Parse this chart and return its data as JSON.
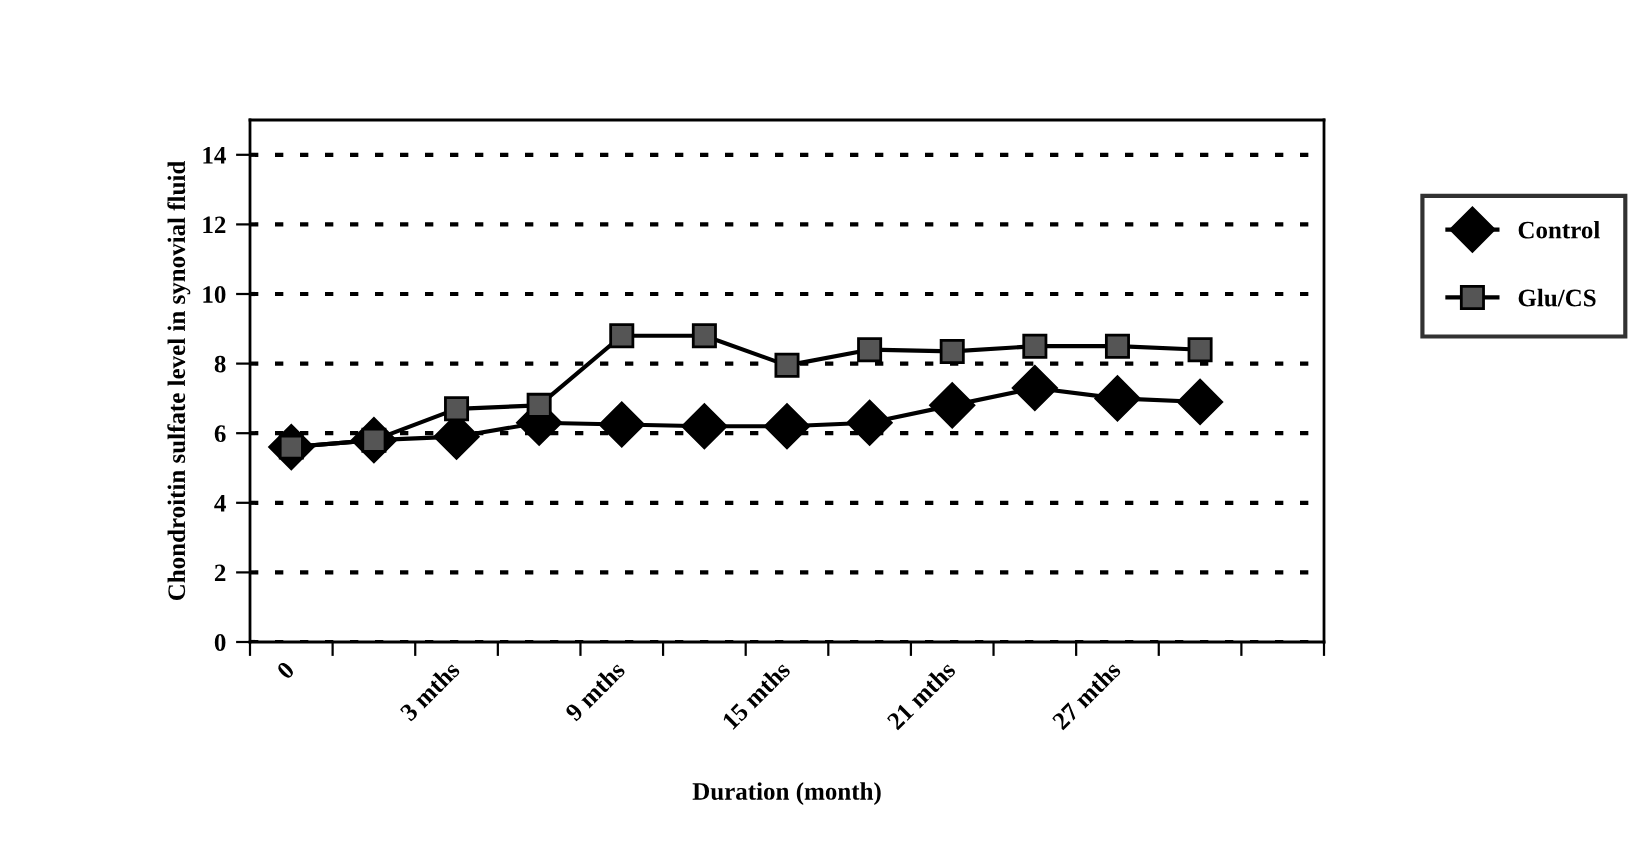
{
  "chart_data": {
    "type": "line",
    "xlabel": "Duration (month)",
    "ylabel": "Chondroitin sulfate level in synovial fluid",
    "categories": [
      "0",
      null,
      "3 mths",
      null,
      "9 mths",
      null,
      "15 mths",
      null,
      "21 mths",
      null,
      "27 mths",
      null,
      null
    ],
    "series": [
      {
        "name": "Control",
        "color": "#000000",
        "marker": "diamond",
        "values": [
          5.6,
          5.8,
          5.9,
          6.3,
          6.25,
          6.2,
          6.2,
          6.3,
          6.8,
          7.3,
          7.0,
          6.9,
          null
        ]
      },
      {
        "name": "Glu/CS",
        "color": "#555555",
        "marker": "square",
        "values": [
          5.6,
          5.8,
          6.7,
          6.8,
          8.8,
          8.8,
          7.95,
          8.4,
          8.35,
          8.5,
          8.5,
          8.4,
          null
        ]
      }
    ],
    "ylim": [
      0,
      15
    ],
    "yticks": [
      0,
      2,
      4,
      6,
      8,
      10,
      12,
      14
    ],
    "grid": "y",
    "line_style": "solid",
    "legend": "right"
  }
}
